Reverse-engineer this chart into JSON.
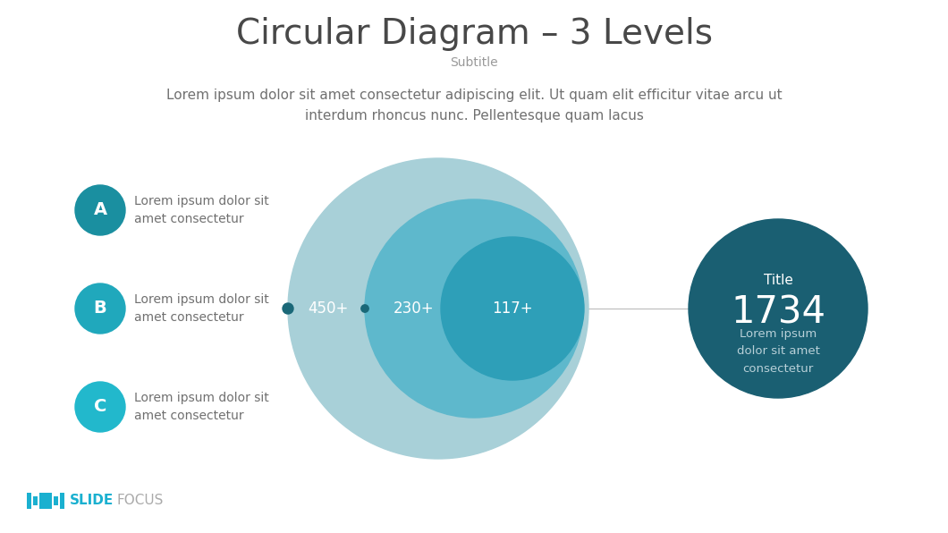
{
  "title": "Circular Diagram – 3 Levels",
  "subtitle": "Subtitle",
  "body_text": "Lorem ipsum dolor sit amet consectetur adipiscing elit. Ut quam elit efficitur vitae arcu ut\ninterdum rhoncus nunc. Pellentesque quam lacus",
  "labels": [
    "A",
    "B",
    "C"
  ],
  "label_texts": [
    "Lorem ipsum dolor sit\namet consectetur",
    "Lorem ipsum dolor sit\namet consectetur",
    "Lorem ipsum dolor sit\namet consectetur"
  ],
  "circle_values": [
    "450+",
    "230+",
    "117+"
  ],
  "circle_colors": [
    "#a8d0d8",
    "#5eb8cc",
    "#2e9fb8"
  ],
  "label_circle_colors": [
    "#1a8fa0",
    "#20a8bc",
    "#22b8cc"
  ],
  "dot_color": "#1a6878",
  "info_circle_color": "#1a5f72",
  "info_title": "Title",
  "info_number": "1734",
  "info_text": "Lorem ipsum\ndolor sit amet\nconsectetur",
  "slidefocus_color": "#1ab0d0",
  "bg_color": "#ffffff",
  "title_color": "#484848",
  "subtitle_color": "#999999",
  "body_color": "#707070",
  "white": "#ffffff",
  "line_color": "#bbbbbb"
}
